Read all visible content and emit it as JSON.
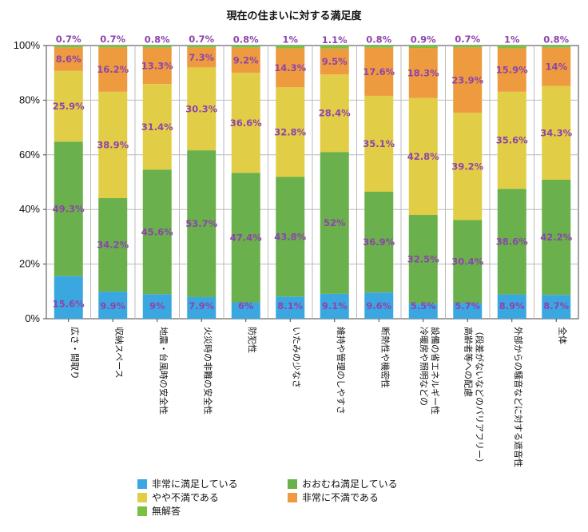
{
  "chart_data": {
    "type": "bar",
    "stacked": true,
    "title": "現在の住まいに対する満足度",
    "xlabel": "",
    "ylabel": "",
    "ylim": [
      0,
      100
    ],
    "yticks": [
      "0%",
      "20%",
      "40%",
      "60%",
      "80%",
      "100%"
    ],
    "grid": true,
    "legend_position": "bottom",
    "categories": [
      [
        "広さ・間取り"
      ],
      [
        "収納スペース"
      ],
      [
        "地震・台風時の安全性"
      ],
      [
        "火災時の非難の安全性"
      ],
      [
        "防犯性"
      ],
      [
        "いたみの少なさ"
      ],
      [
        "維持や管理のしやすさ"
      ],
      [
        "断熱性や機密性"
      ],
      [
        "冷暖房や照明などの",
        "設備の省エネルギー性"
      ],
      [
        "高齢者等への配慮",
        "（段差がないなどのバリアフリー）"
      ],
      [
        "外部からの騒音などに対する遮音性"
      ],
      [
        "全体"
      ]
    ],
    "series": [
      {
        "name": "非常に満足している",
        "color": "#3ba7e0",
        "values": [
          15.6,
          9.9,
          9,
          7.9,
          6,
          8.1,
          9.1,
          9.6,
          5.5,
          5.7,
          8.9,
          8.7
        ]
      },
      {
        "name": "おおむね満足している",
        "color": "#6ab04c",
        "values": [
          49.3,
          34.2,
          45.6,
          53.7,
          47.4,
          43.8,
          52,
          36.9,
          32.5,
          30.4,
          38.6,
          42.2
        ]
      },
      {
        "name": "やや不満である",
        "color": "#e2cd46",
        "values": [
          25.9,
          38.9,
          31.4,
          30.3,
          36.6,
          32.8,
          28.4,
          35.1,
          42.8,
          39.2,
          35.6,
          34.3
        ]
      },
      {
        "name": "非常に不満である",
        "color": "#ee9a3f",
        "values": [
          8.6,
          16.2,
          13.3,
          7.3,
          9.2,
          14.3,
          9.5,
          17.6,
          18.3,
          23.9,
          15.9,
          14
        ]
      },
      {
        "name": "無解答",
        "color": "#7ac141",
        "values": [
          0.7,
          0.7,
          0.8,
          0.7,
          0.8,
          1,
          1.1,
          0.8,
          0.9,
          0.7,
          1,
          0.8
        ]
      }
    ],
    "labels": [
      [
        "15.6%",
        "49.3%",
        "25.9%",
        "8.6%",
        "0.7%"
      ],
      [
        "9.9%",
        "34.2%",
        "38.9%",
        "16.2%",
        "0.7%"
      ],
      [
        "9%",
        "45.6%",
        "31.4%",
        "13.3%",
        "0.8%"
      ],
      [
        "7.9%",
        "53.7%",
        "30.3%",
        "7.3%",
        "0.7%"
      ],
      [
        "6%",
        "47.4%",
        "36.6%",
        "9.2%",
        "0.8%"
      ],
      [
        "8.1%",
        "43.8%",
        "32.8%",
        "14.3%",
        "1%"
      ],
      [
        "9.1%",
        "52%",
        "28.4%",
        "9.5%",
        "1.1%"
      ],
      [
        "9.6%",
        "36.9%",
        "35.1%",
        "17.6%",
        "0.8%"
      ],
      [
        "5.5%",
        "32.5%",
        "42.8%",
        "18.3%",
        "0.9%"
      ],
      [
        "5.7%",
        "30.4%",
        "39.2%",
        "23.9%",
        "0.7%"
      ],
      [
        "8.9%",
        "38.6%",
        "35.6%",
        "15.9%",
        "1%"
      ],
      [
        "8.7%",
        "42.2%",
        "34.3%",
        "14%",
        "0.8%"
      ]
    ]
  }
}
